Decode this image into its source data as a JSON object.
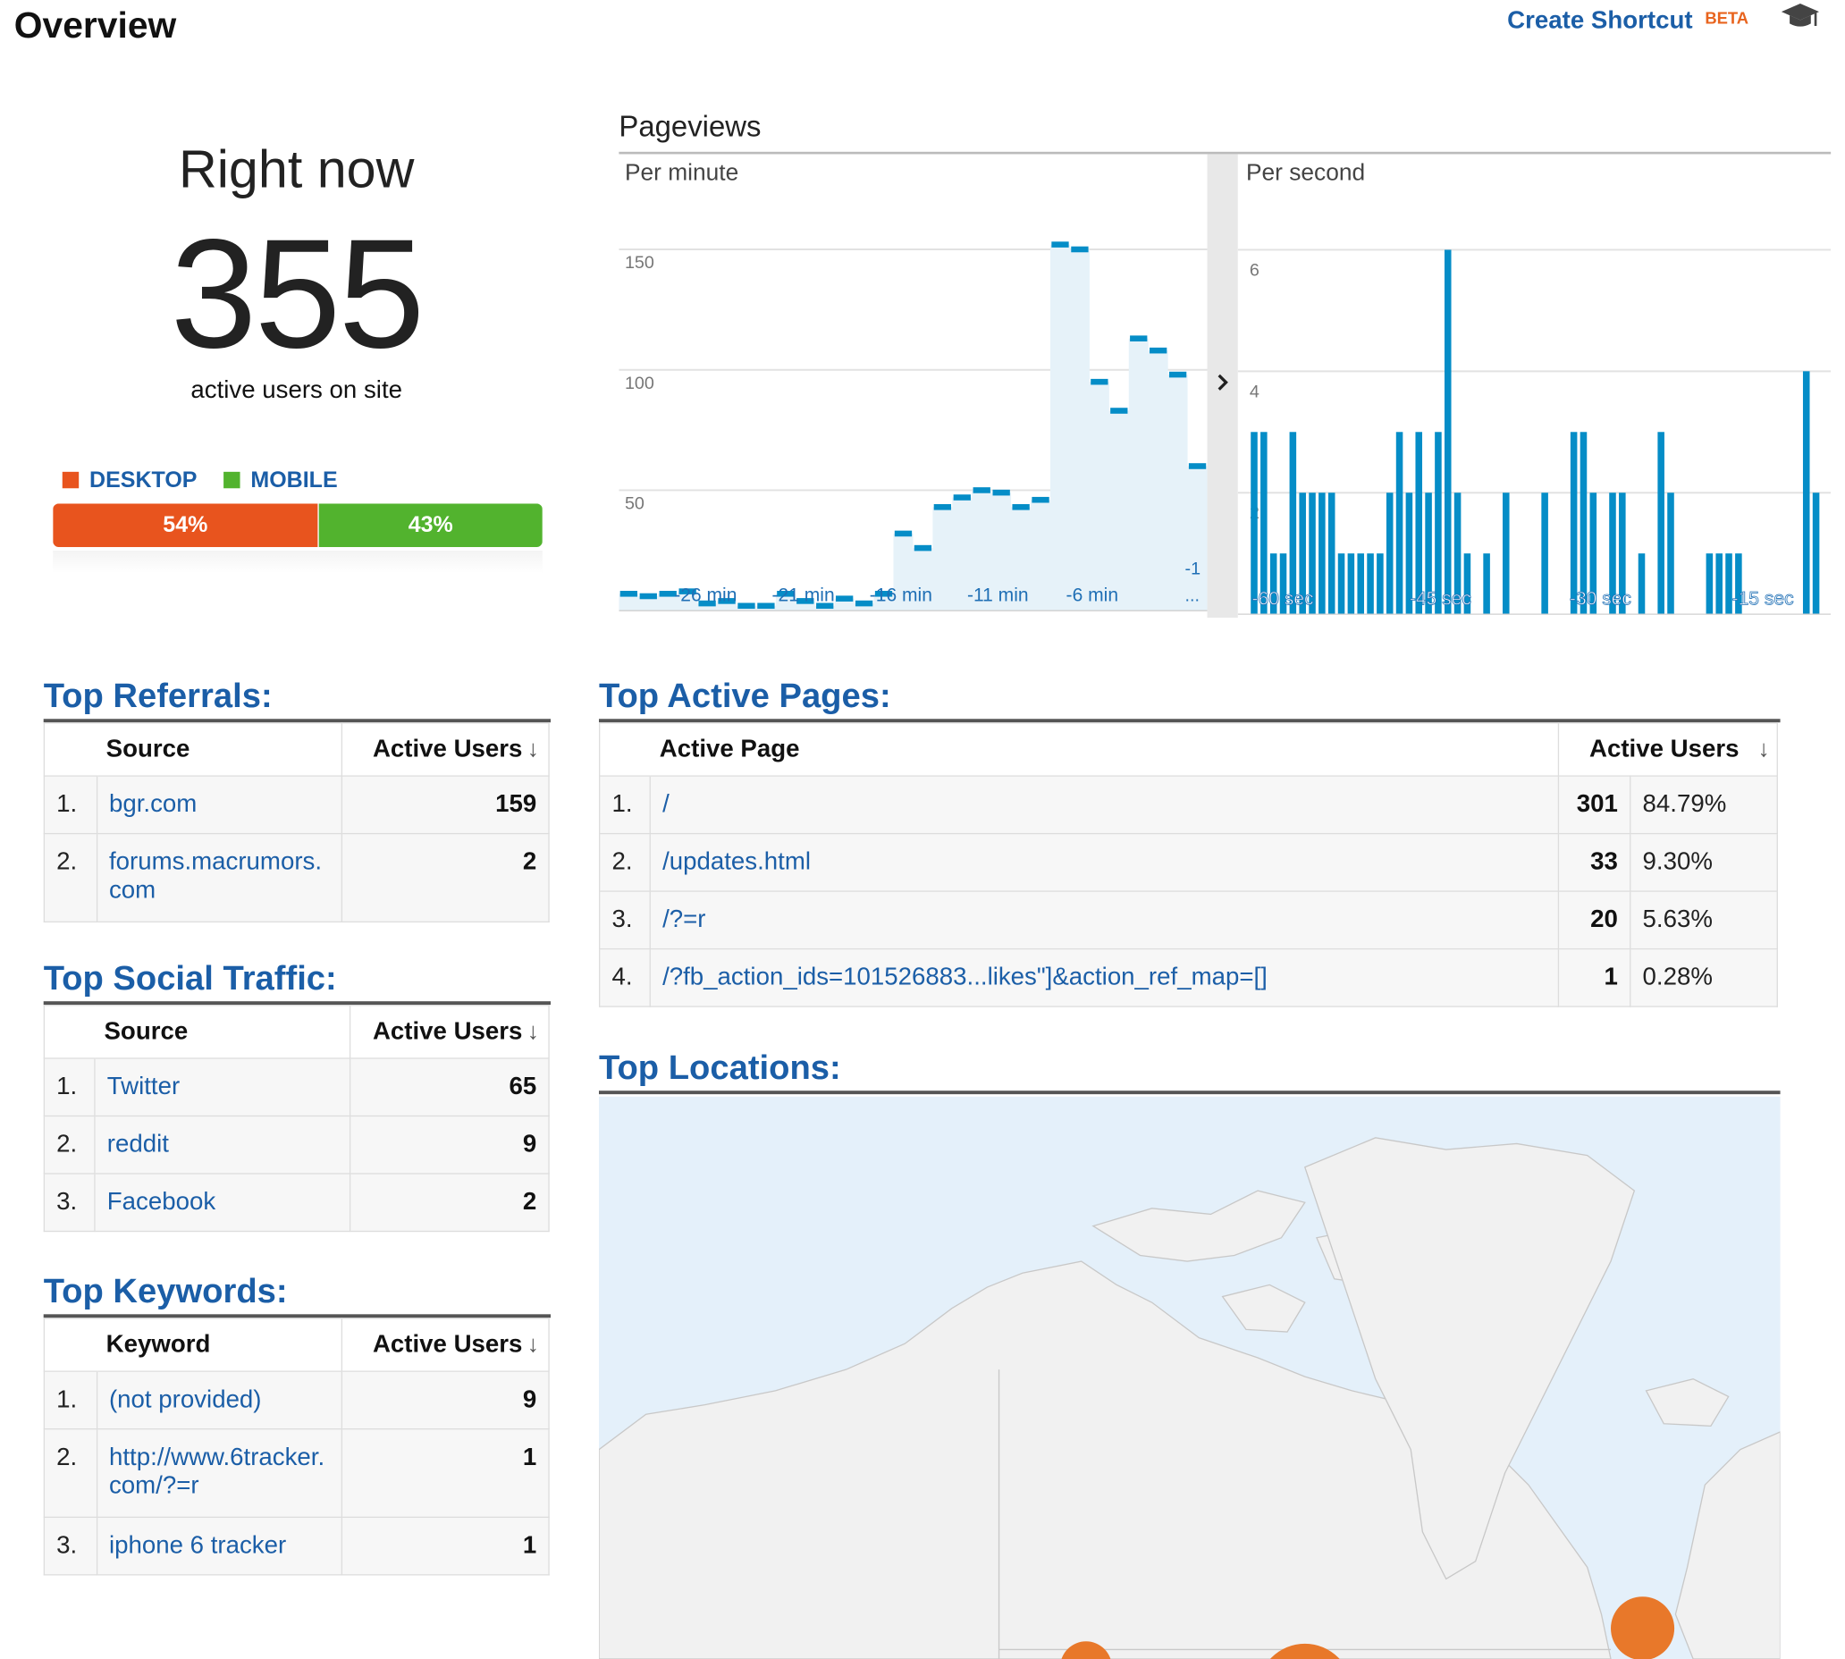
{
  "header": {
    "title": "Overview",
    "shortcut_label": "Create Shortcut",
    "beta_label": "BETA",
    "help_icon": "graduation-cap-icon"
  },
  "right_now": {
    "label": "Right now",
    "count": "355",
    "sublabel": "active users on site",
    "legend": {
      "desktop": "DESKTOP",
      "mobile": "MOBILE"
    },
    "split": {
      "desktop_pct": "54%",
      "mobile_pct": "43%",
      "desktop_fraction": 0.54,
      "mobile_fraction": 0.43
    },
    "colors": {
      "desktop": "#e8541e",
      "mobile": "#52b32e"
    }
  },
  "pageviews": {
    "title": "Pageviews",
    "per_minute_label": "Per minute",
    "per_second_label": "Per second",
    "expand_icon": "chevron-right-icon"
  },
  "chart_data": [
    {
      "type": "area",
      "title": "Per minute",
      "x": [
        -30,
        -29,
        -28,
        -27,
        -26,
        -25,
        -24,
        -23,
        -22,
        -21,
        -20,
        -19,
        -18,
        -17,
        -16,
        -15,
        -14,
        -13,
        -12,
        -11,
        -10,
        -9,
        -8,
        -7,
        -6,
        -5,
        -4,
        -3,
        -2,
        -1
      ],
      "values": [
        7,
        6,
        7,
        8,
        3,
        4,
        2,
        2,
        7,
        4,
        2,
        5,
        3,
        7,
        32,
        26,
        43,
        47,
        50,
        49,
        43,
        46,
        152,
        150,
        95,
        83,
        113,
        108,
        98,
        60
      ],
      "yticks": [
        50,
        100,
        150
      ],
      "ylim": [
        0,
        170
      ],
      "xtick_labels": [
        "-26 min",
        "-21 min",
        "-16 min",
        "-11 min",
        "-6 min",
        "-1 ..."
      ],
      "color": "#058dc7",
      "fill": "#e6f2f9"
    },
    {
      "type": "bar",
      "title": "Per second",
      "x": [
        -60,
        -59,
        -58,
        -57,
        -56,
        -55,
        -54,
        -53,
        -52,
        -51,
        -50,
        -49,
        -48,
        -47,
        -46,
        -45,
        -44,
        -43,
        -42,
        -41,
        -40,
        -39,
        -38,
        -37,
        -36,
        -35,
        -34,
        -33,
        -32,
        -31,
        -30,
        -29,
        -28,
        -27,
        -26,
        -25,
        -24,
        -23,
        -22,
        -21,
        -20,
        -19,
        -18,
        -17,
        -16,
        -15,
        -14,
        -13,
        -12,
        -11,
        -10,
        -9,
        -8,
        -7,
        -6,
        -5,
        -4,
        -3,
        -2,
        -1
      ],
      "values": [
        3,
        3,
        1,
        1,
        3,
        2,
        2,
        2,
        2,
        1,
        1,
        1,
        1,
        1,
        2,
        3,
        2,
        3,
        2,
        3,
        6,
        2,
        1,
        0,
        1,
        0,
        2,
        0,
        0,
        0,
        2,
        0,
        0,
        3,
        3,
        2,
        0,
        2,
        2,
        0,
        1,
        0,
        3,
        2,
        0,
        0,
        0,
        1,
        1,
        1,
        1,
        0,
        0,
        0,
        0,
        0,
        0,
        4,
        2,
        0
      ],
      "yticks": [
        2,
        4,
        6
      ],
      "ylim": [
        0,
        6.8
      ],
      "xtick_labels": [
        "-60 sec",
        "-45 sec",
        "-30 sec",
        "-15 sec"
      ],
      "color": "#058dc7"
    }
  ],
  "top_referrals": {
    "title": "Top Referrals:",
    "col_source": "Source",
    "col_users": "Active Users",
    "rows": [
      {
        "idx": "1.",
        "source": "bgr.com",
        "users": "159"
      },
      {
        "idx": "2.",
        "source": "forums.macrumors.com",
        "users": "2"
      }
    ]
  },
  "top_social": {
    "title": "Top Social Traffic:",
    "col_source": "Source",
    "col_users": "Active Users",
    "rows": [
      {
        "idx": "1.",
        "source": "Twitter",
        "users": "65"
      },
      {
        "idx": "2.",
        "source": "reddit",
        "users": "9"
      },
      {
        "idx": "3.",
        "source": "Facebook",
        "users": "2"
      }
    ]
  },
  "top_keywords": {
    "title": "Top Keywords:",
    "col_keyword": "Keyword",
    "col_users": "Active Users",
    "rows": [
      {
        "idx": "1.",
        "keyword": "(not provided)",
        "users": "9"
      },
      {
        "idx": "2.",
        "keyword": "http://www.6tracker.com/?=r",
        "users": "1"
      },
      {
        "idx": "3.",
        "keyword": "iphone 6 tracker",
        "users": "1"
      }
    ]
  },
  "top_pages": {
    "title": "Top Active Pages:",
    "col_page": "Active Page",
    "col_users": "Active Users",
    "rows": [
      {
        "idx": "1.",
        "page": "/",
        "users": "301",
        "pct": "84.79%"
      },
      {
        "idx": "2.",
        "page": "/updates.html",
        "users": "33",
        "pct": "9.30%"
      },
      {
        "idx": "3.",
        "page": "/?=r",
        "users": "20",
        "pct": "5.63%"
      },
      {
        "idx": "4.",
        "page": "/?fb_action_ids=101526883...likes\"]&action_ref_map=[]",
        "users": "1",
        "pct": "0.28%"
      }
    ]
  },
  "top_locations": {
    "title": "Top Locations:",
    "colors": {
      "ocean": "#e4f0fa",
      "land": "#f1f1f1",
      "marker": "#e8782a"
    }
  }
}
